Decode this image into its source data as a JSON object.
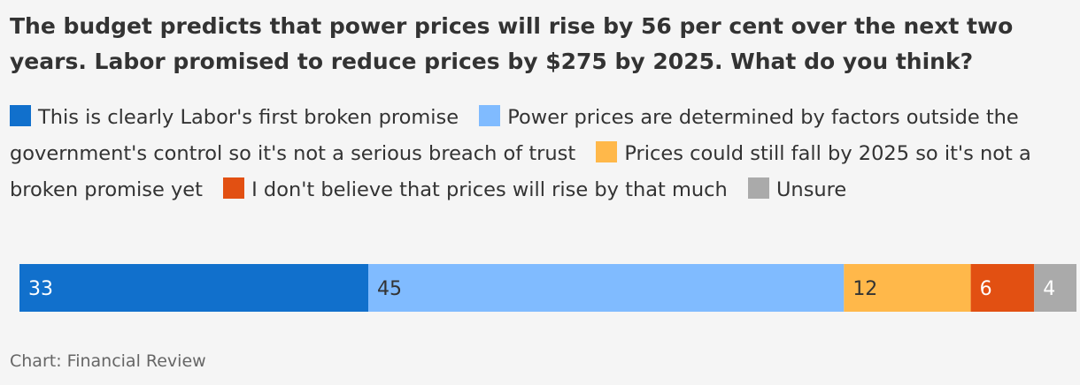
{
  "title": "The budget predicts that power prices will rise by 56 per cent over the next two years. Labor promised to reduce prices by $275 by 2025. What do you think?",
  "source": "Chart: Financial Review",
  "colors": {
    "background": "#f5f5f5",
    "text": "#333333",
    "label_light": "#ffffff",
    "label_dark": "#333333"
  },
  "chart_data": {
    "type": "bar",
    "orientation": "horizontal-stacked",
    "series": [
      {
        "name": "This is clearly Labor's first broken promise",
        "value": 33,
        "color": "#1170cc"
      },
      {
        "name": "Power prices are determined by factors outside the government's control so it's not a serious breach of trust",
        "value": 45,
        "color": "#80bbff"
      },
      {
        "name": "Prices could still fall by 2025 so it's not a broken promise yet",
        "value": 12,
        "color": "#ffb84a"
      },
      {
        "name": "I don't believe that prices will rise by that much",
        "value": 6,
        "color": "#e25012"
      },
      {
        "name": "Unsure",
        "value": 4,
        "color": "#aaaaaa"
      }
    ],
    "total": 100,
    "legend": "top"
  }
}
